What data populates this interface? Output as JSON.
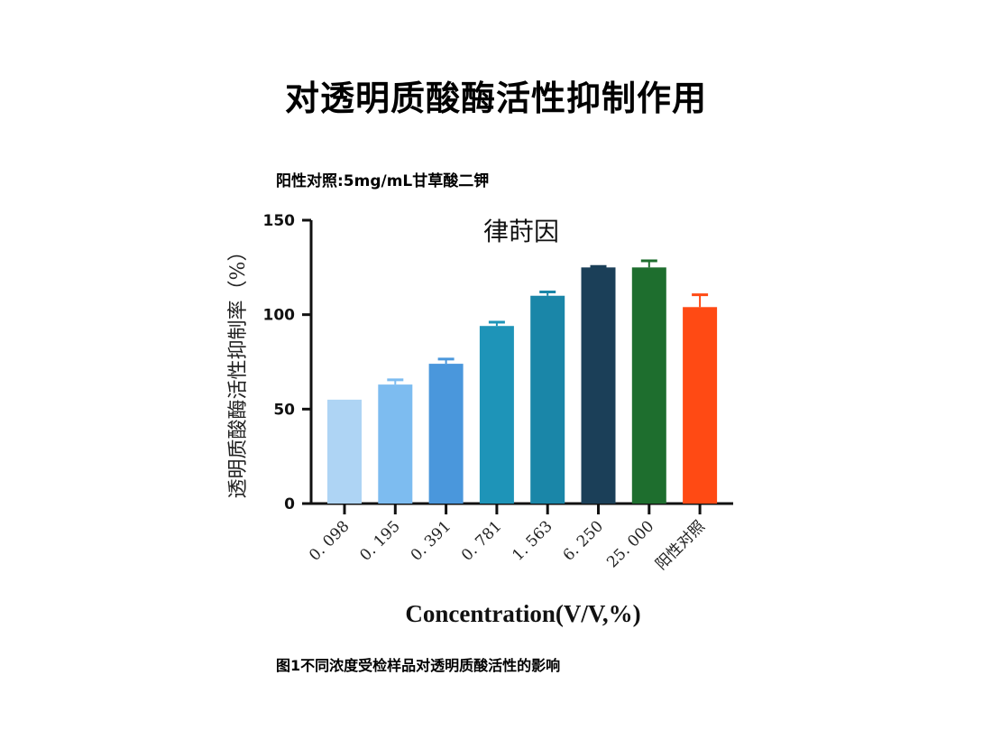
{
  "page": {
    "title": "对透明质酸酶活性抑制作用",
    "positive_control_note": "阳性对照:5mg/mL甘草酸二钾",
    "caption": "图1不同浓度受检样品对透明质酸活性的影响"
  },
  "chart_data": {
    "type": "bar",
    "title": "律莳因",
    "xlabel": "Concentration(V/V,%)",
    "ylabel": "透明质酸酶活性抑制率（%）",
    "ylim": [
      0,
      150
    ],
    "yticks": [
      0,
      50,
      100,
      150
    ],
    "categories": [
      "0. 098",
      "0. 195",
      "0. 391",
      "0. 781",
      "1. 563",
      "6. 250",
      "25. 000",
      "阳性对照"
    ],
    "values": [
      55,
      63,
      74,
      94,
      110,
      125,
      125,
      104
    ],
    "errors": [
      0,
      2.5,
      2.5,
      2,
      2,
      0.5,
      3.5,
      6.5
    ],
    "colors": [
      "#aed4f4",
      "#7dbcf0",
      "#4a97dc",
      "#1e94b8",
      "#1a86a8",
      "#1b3f58",
      "#1e6e2e",
      "#ff4a14"
    ],
    "grid": false
  }
}
